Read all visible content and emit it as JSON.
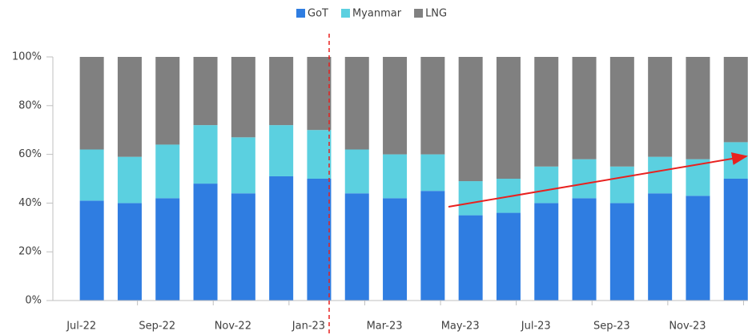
{
  "chart_data": {
    "type": "stacked_bar",
    "categories": [
      "Jul-22",
      null,
      "Sep-22",
      null,
      "Nov-22",
      null,
      "Jan-23",
      null,
      "Mar-23",
      null,
      "May-23",
      null,
      "Jul-23",
      null,
      "Sep-23",
      null,
      "Nov-23",
      null
    ],
    "series": [
      {
        "name": "GoT",
        "color": "#2f7de1",
        "values": [
          41,
          40,
          42,
          48,
          44,
          51,
          50,
          44,
          42,
          45,
          35,
          36,
          40,
          42,
          40,
          44,
          43,
          50
        ]
      },
      {
        "name": "Myanmar",
        "color": "#5bd0e0",
        "values": [
          21,
          19,
          22,
          24,
          23,
          21,
          20,
          18,
          18,
          15,
          14,
          14,
          15,
          16,
          15,
          15,
          15,
          15
        ]
      },
      {
        "name": "LNG",
        "color": "#808080",
        "values": [
          38,
          41,
          36,
          28,
          33,
          28,
          30,
          38,
          40,
          40,
          51,
          50,
          45,
          42,
          45,
          41,
          42,
          35
        ]
      }
    ],
    "ylim": [
      0,
      100
    ],
    "yticks": [
      {
        "value": 0,
        "label": "0%"
      },
      {
        "value": 20,
        "label": "20%"
      },
      {
        "value": 40,
        "label": "40%"
      },
      {
        "value": 60,
        "label": "60%"
      },
      {
        "value": 80,
        "label": "80%"
      },
      {
        "value": 100,
        "label": "100%"
      }
    ],
    "legend": "top"
  }
}
